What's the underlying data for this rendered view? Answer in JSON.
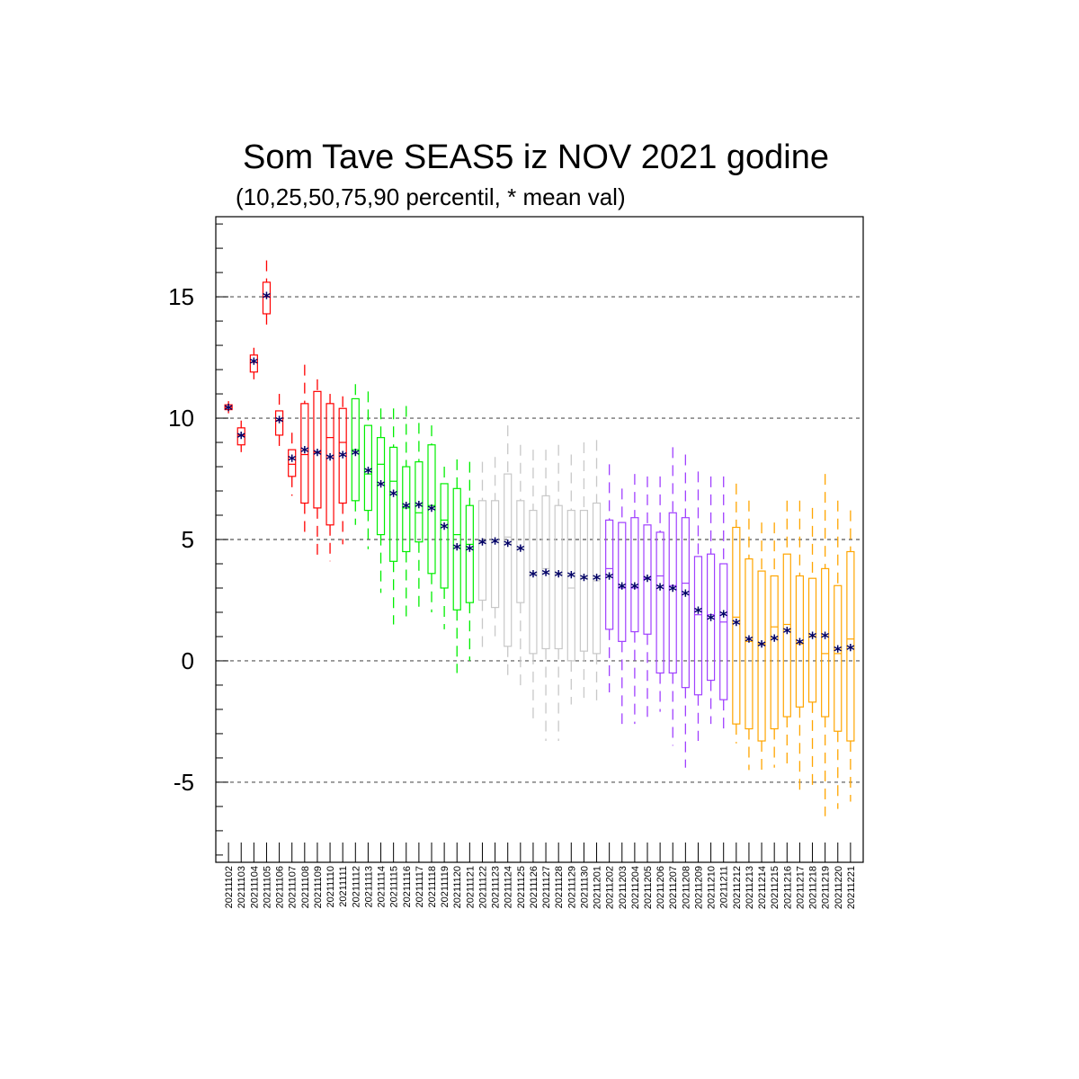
{
  "chart_data": {
    "type": "box",
    "title": "Som Tave SEAS5 iz NOV 2021 godine",
    "subtitle": "(10,25,50,75,90 percentil, * mean val)",
    "mean_marker": "*",
    "ylim": [
      -8.3,
      18.3
    ],
    "yticks": [
      -5,
      0,
      5,
      10,
      15
    ],
    "grid_y": true,
    "colors": {
      "red": "#ff0000",
      "green": "#00ee00",
      "gray": "#c8c8c8",
      "purple": "#a040ff",
      "orange": "#ffa500",
      "mean": "#000066"
    },
    "categories": [
      "20211102",
      "20211103",
      "20211104",
      "20211105",
      "20211106",
      "20211107",
      "20211108",
      "20211109",
      "20211110",
      "20211111",
      "20211112",
      "20211113",
      "20211114",
      "20211115",
      "20211116",
      "20211117",
      "20211118",
      "20211119",
      "20211120",
      "20211121",
      "20211122",
      "20211123",
      "20211124",
      "20211125",
      "20211126",
      "20211127",
      "20211128",
      "20211129",
      "20211130",
      "20211201",
      "20211202",
      "20211203",
      "20211204",
      "20211205",
      "20211206",
      "20211207",
      "20211208",
      "20211209",
      "20211210",
      "20211211",
      "20211212",
      "20211213",
      "20211214",
      "20211215",
      "20211216",
      "20211217",
      "20211218",
      "20211219",
      "20211220",
      "20211221"
    ],
    "boxes": [
      {
        "p10": 10.2,
        "p25": 10.35,
        "p50": 10.45,
        "p75": 10.55,
        "p90": 10.7,
        "mean": 10.45,
        "color": "red"
      },
      {
        "p10": 8.6,
        "p25": 8.9,
        "p50": 9.3,
        "p75": 9.6,
        "p90": 9.9,
        "mean": 9.3,
        "color": "red"
      },
      {
        "p10": 11.6,
        "p25": 11.9,
        "p50": 12.3,
        "p75": 12.6,
        "p90": 12.9,
        "mean": 12.35,
        "color": "red"
      },
      {
        "p10": 13.8,
        "p25": 14.3,
        "p50": 15.0,
        "p75": 15.6,
        "p90": 16.5,
        "mean": 15.05,
        "color": "red"
      },
      {
        "p10": 8.8,
        "p25": 9.3,
        "p50": 9.9,
        "p75": 10.3,
        "p90": 11.0,
        "mean": 9.95,
        "color": "red"
      },
      {
        "p10": 6.8,
        "p25": 7.6,
        "p50": 8.1,
        "p75": 8.7,
        "p90": 9.4,
        "mean": 8.35,
        "color": "red"
      },
      {
        "p10": 5.3,
        "p25": 6.5,
        "p50": 8.5,
        "p75": 10.6,
        "p90": 12.2,
        "mean": 8.7,
        "color": "red"
      },
      {
        "p10": 4.1,
        "p25": 6.3,
        "p50": 8.6,
        "p75": 11.1,
        "p90": 11.6,
        "mean": 8.6,
        "color": "red"
      },
      {
        "p10": 4.1,
        "p25": 5.6,
        "p50": 9.2,
        "p75": 10.6,
        "p90": 11.0,
        "mean": 8.4,
        "color": "red"
      },
      {
        "p10": 4.8,
        "p25": 6.5,
        "p50": 9.0,
        "p75": 10.4,
        "p90": 10.9,
        "mean": 8.5,
        "color": "red"
      },
      {
        "p10": 5.6,
        "p25": 6.6,
        "p50": 8.7,
        "p75": 10.8,
        "p90": 11.4,
        "mean": 8.6,
        "color": "green"
      },
      {
        "p10": 4.6,
        "p25": 6.2,
        "p50": 7.7,
        "p75": 9.7,
        "p90": 11.1,
        "mean": 7.85,
        "color": "green"
      },
      {
        "p10": 2.8,
        "p25": 5.2,
        "p50": 8.1,
        "p75": 9.2,
        "p90": 10.4,
        "mean": 7.3,
        "color": "green"
      },
      {
        "p10": 1.5,
        "p25": 4.1,
        "p50": 7.4,
        "p75": 8.8,
        "p90": 10.4,
        "mean": 6.9,
        "color": "green"
      },
      {
        "p10": 1.7,
        "p25": 4.5,
        "p50": 6.3,
        "p75": 8.0,
        "p90": 10.5,
        "mean": 6.4,
        "color": "green"
      },
      {
        "p10": 2.0,
        "p25": 4.9,
        "p50": 6.1,
        "p75": 8.2,
        "p90": 9.8,
        "mean": 6.45,
        "color": "green"
      },
      {
        "p10": 2.0,
        "p25": 3.6,
        "p50": 6.4,
        "p75": 8.9,
        "p90": 9.7,
        "mean": 6.3,
        "color": "green"
      },
      {
        "p10": 1.3,
        "p25": 3.0,
        "p50": 5.8,
        "p75": 7.3,
        "p90": 8.0,
        "mean": 5.55,
        "color": "green"
      },
      {
        "p10": -0.5,
        "p25": 2.1,
        "p50": 5.2,
        "p75": 7.1,
        "p90": 8.3,
        "mean": 4.7,
        "color": "green"
      },
      {
        "p10": 0.0,
        "p25": 2.4,
        "p50": 4.8,
        "p75": 6.4,
        "p90": 8.2,
        "mean": 4.65,
        "color": "green"
      },
      {
        "p10": 0.3,
        "p25": 2.5,
        "p50": 4.9,
        "p75": 6.6,
        "p90": 8.2,
        "mean": 4.9,
        "color": "gray"
      },
      {
        "p10": 0.8,
        "p25": 2.2,
        "p50": 5.0,
        "p75": 6.6,
        "p90": 8.4,
        "mean": 4.95,
        "color": "gray"
      },
      {
        "p10": -0.7,
        "p25": 0.6,
        "p50": 5.1,
        "p75": 7.7,
        "p90": 9.7,
        "mean": 4.85,
        "color": "gray"
      },
      {
        "p10": -1.3,
        "p25": 2.4,
        "p50": 4.6,
        "p75": 6.6,
        "p90": 8.9,
        "mean": 4.65,
        "color": "gray"
      },
      {
        "p10": -2.4,
        "p25": 0.3,
        "p50": 3.6,
        "p75": 6.2,
        "p90": 8.7,
        "mean": 3.6,
        "color": "gray"
      },
      {
        "p10": -3.3,
        "p25": 0.5,
        "p50": 3.8,
        "p75": 6.8,
        "p90": 8.7,
        "mean": 3.65,
        "color": "gray"
      },
      {
        "p10": -3.3,
        "p25": 0.5,
        "p50": 3.6,
        "p75": 6.4,
        "p90": 8.9,
        "mean": 3.6,
        "color": "gray"
      },
      {
        "p10": -1.8,
        "p25": 0.0,
        "p50": 3.0,
        "p75": 6.2,
        "p90": 8.5,
        "mean": 3.55,
        "color": "gray"
      },
      {
        "p10": -1.8,
        "p25": 0.4,
        "p50": 3.4,
        "p75": 6.2,
        "p90": 9.0,
        "mean": 3.45,
        "color": "gray"
      },
      {
        "p10": -1.7,
        "p25": 0.3,
        "p50": 3.3,
        "p75": 6.5,
        "p90": 9.1,
        "mean": 3.45,
        "color": "gray"
      },
      {
        "p10": -1.3,
        "p25": 1.3,
        "p50": 3.8,
        "p75": 5.8,
        "p90": 8.1,
        "mean": 3.5,
        "color": "purple"
      },
      {
        "p10": -2.6,
        "p25": 0.8,
        "p50": 3.0,
        "p75": 5.7,
        "p90": 7.1,
        "mean": 3.1,
        "color": "purple"
      },
      {
        "p10": -2.6,
        "p25": 1.2,
        "p50": 3.0,
        "p75": 5.9,
        "p90": 7.7,
        "mean": 3.1,
        "color": "purple"
      },
      {
        "p10": -2.4,
        "p25": 1.1,
        "p50": 3.4,
        "p75": 5.6,
        "p90": 7.6,
        "mean": 3.4,
        "color": "purple"
      },
      {
        "p10": -2.1,
        "p25": -0.5,
        "p50": 3.5,
        "p75": 5.3,
        "p90": 7.6,
        "mean": 3.05,
        "color": "purple"
      },
      {
        "p10": -3.5,
        "p25": -0.5,
        "p50": 3.1,
        "p75": 6.1,
        "p90": 8.8,
        "mean": 3.0,
        "color": "purple"
      },
      {
        "p10": -4.4,
        "p25": -1.1,
        "p50": 3.2,
        "p75": 5.9,
        "p90": 8.5,
        "mean": 2.8,
        "color": "purple"
      },
      {
        "p10": -3.3,
        "p25": -1.4,
        "p50": 1.9,
        "p75": 4.3,
        "p90": 7.8,
        "mean": 2.1,
        "color": "purple"
      },
      {
        "p10": -2.6,
        "p25": -0.8,
        "p50": 1.9,
        "p75": 4.4,
        "p90": 7.6,
        "mean": 1.8,
        "color": "purple"
      },
      {
        "p10": -3.0,
        "p25": -1.6,
        "p50": 1.6,
        "p75": 4.0,
        "p90": 7.6,
        "mean": 1.95,
        "color": "purple"
      },
      {
        "p10": -3.4,
        "p25": -2.6,
        "p50": 1.8,
        "p75": 5.5,
        "p90": 7.3,
        "mean": 1.6,
        "color": "orange"
      },
      {
        "p10": -4.5,
        "p25": -2.8,
        "p50": 0.8,
        "p75": 4.2,
        "p90": 6.6,
        "mean": 0.9,
        "color": "orange"
      },
      {
        "p10": -4.6,
        "p25": -3.3,
        "p50": 0.7,
        "p75": 3.7,
        "p90": 5.7,
        "mean": 0.7,
        "color": "orange"
      },
      {
        "p10": -4.4,
        "p25": -2.8,
        "p50": 1.4,
        "p75": 3.5,
        "p90": 5.7,
        "mean": 0.95,
        "color": "orange"
      },
      {
        "p10": -4.5,
        "p25": -2.3,
        "p50": 1.5,
        "p75": 4.4,
        "p90": 6.6,
        "mean": 1.25,
        "color": "orange"
      },
      {
        "p10": -5.6,
        "p25": -1.9,
        "p50": 0.7,
        "p75": 3.5,
        "p90": 6.6,
        "mean": 0.8,
        "color": "orange"
      },
      {
        "p10": -5.3,
        "p25": -1.7,
        "p50": 1.0,
        "p75": 3.4,
        "p90": 6.3,
        "mean": 1.05,
        "color": "orange"
      },
      {
        "p10": -6.4,
        "p25": -2.3,
        "p50": 0.3,
        "p75": 3.8,
        "p90": 7.7,
        "mean": 1.05,
        "color": "orange"
      },
      {
        "p10": -6.1,
        "p25": -2.9,
        "p50": 0.3,
        "p75": 3.1,
        "p90": 6.6,
        "mean": 0.5,
        "color": "orange"
      },
      {
        "p10": -5.8,
        "p25": -3.3,
        "p50": 0.9,
        "p75": 4.5,
        "p90": 6.2,
        "mean": 0.55,
        "color": "orange"
      }
    ]
  }
}
